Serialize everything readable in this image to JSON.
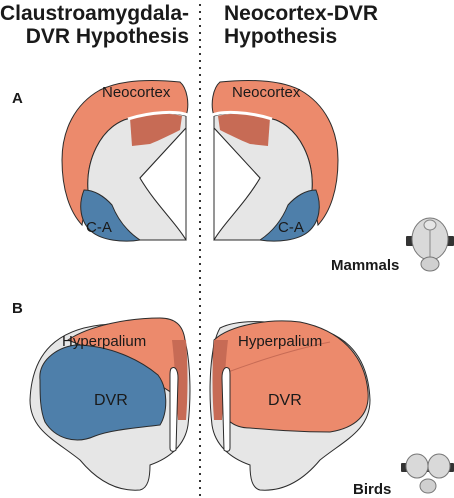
{
  "hypotheses": {
    "left": {
      "line1": "Claustroamygdala-",
      "line2": "DVR Hypothesis"
    },
    "right": {
      "line1": "Neocortex-DVR",
      "line2": "Hypothesis"
    }
  },
  "panels": {
    "a": "A",
    "b": "B"
  },
  "labels": {
    "neocortex": "Neocortex",
    "claustroamygdala": "C-A",
    "hyperpallium": "Hyperpalium",
    "dvr": "DVR"
  },
  "species": {
    "mammals": "Mammals",
    "birds": "Birds"
  },
  "colors": {
    "neocortex_orange": "#ec8a6c",
    "dark_orange": "#c76b55",
    "blue": "#4e7faa",
    "gray": "#e6e6e6",
    "outline": "#2b2b2b"
  }
}
